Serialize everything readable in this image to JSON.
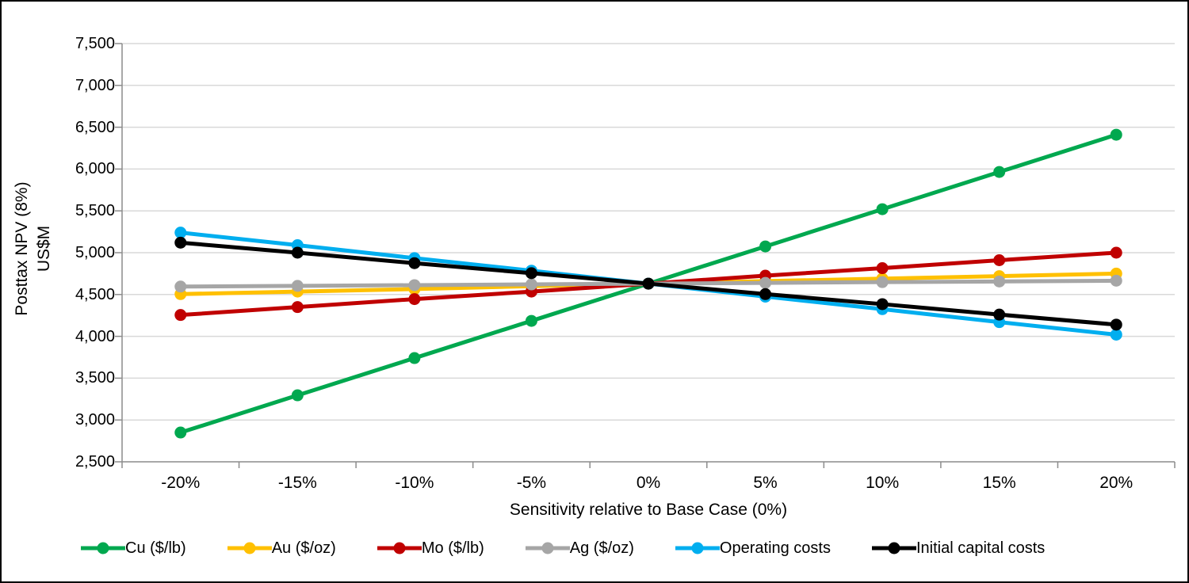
{
  "chart_data": {
    "type": "line",
    "title": "",
    "xlabel": "Sensitivity relative to Base Case (0%)",
    "ylabel_lines": [
      "Posttax NPV (8%)",
      "US$M"
    ],
    "categories": [
      "-20%",
      "-15%",
      "-10%",
      "-5%",
      "0%",
      "5%",
      "10%",
      "15%",
      "20%"
    ],
    "y_axis": {
      "min": 2500,
      "max": 7500,
      "step": 500,
      "tick_labels": [
        "7,500",
        "7,000",
        "6,500",
        "6,000",
        "5,500",
        "5,000",
        "4,500",
        "4,000",
        "3,500",
        "3,000",
        "2,500"
      ]
    },
    "grid": "horizontal",
    "legend_position": "bottom",
    "series": [
      {
        "name": "Cu ($/lb)",
        "color": "#00A84F",
        "values": [
          2850,
          3295,
          3740,
          4185,
          4630,
          5075,
          5520,
          5965,
          6410
        ]
      },
      {
        "name": "Au ($/oz)",
        "color": "#FFC000",
        "values": [
          4505,
          4535,
          4565,
          4600,
          4630,
          4660,
          4690,
          4720,
          4750
        ]
      },
      {
        "name": "Mo ($/lb)",
        "color": "#C00000",
        "values": [
          4255,
          4350,
          4445,
          4535,
          4630,
          4725,
          4815,
          4910,
          5000
        ]
      },
      {
        "name": "Ag ($/oz)",
        "color": "#A6A6A6",
        "values": [
          4595,
          4603,
          4612,
          4621,
          4630,
          4639,
          4648,
          4656,
          4665
        ]
      },
      {
        "name": "Operating costs",
        "color": "#00AEEF",
        "values": [
          5240,
          5090,
          4935,
          4785,
          4630,
          4475,
          4325,
          4170,
          4020
        ]
      },
      {
        "name": "Initial capital costs",
        "color": "#000000",
        "values": [
          5120,
          5000,
          4875,
          4755,
          4630,
          4505,
          4385,
          4260,
          4140
        ]
      }
    ]
  },
  "styles": {
    "gridline_color": "#D9D9D9",
    "axis_color": "#8C8C8C",
    "text_color": "#000000",
    "background": "#FFFFFF",
    "border_color": "#000000"
  }
}
